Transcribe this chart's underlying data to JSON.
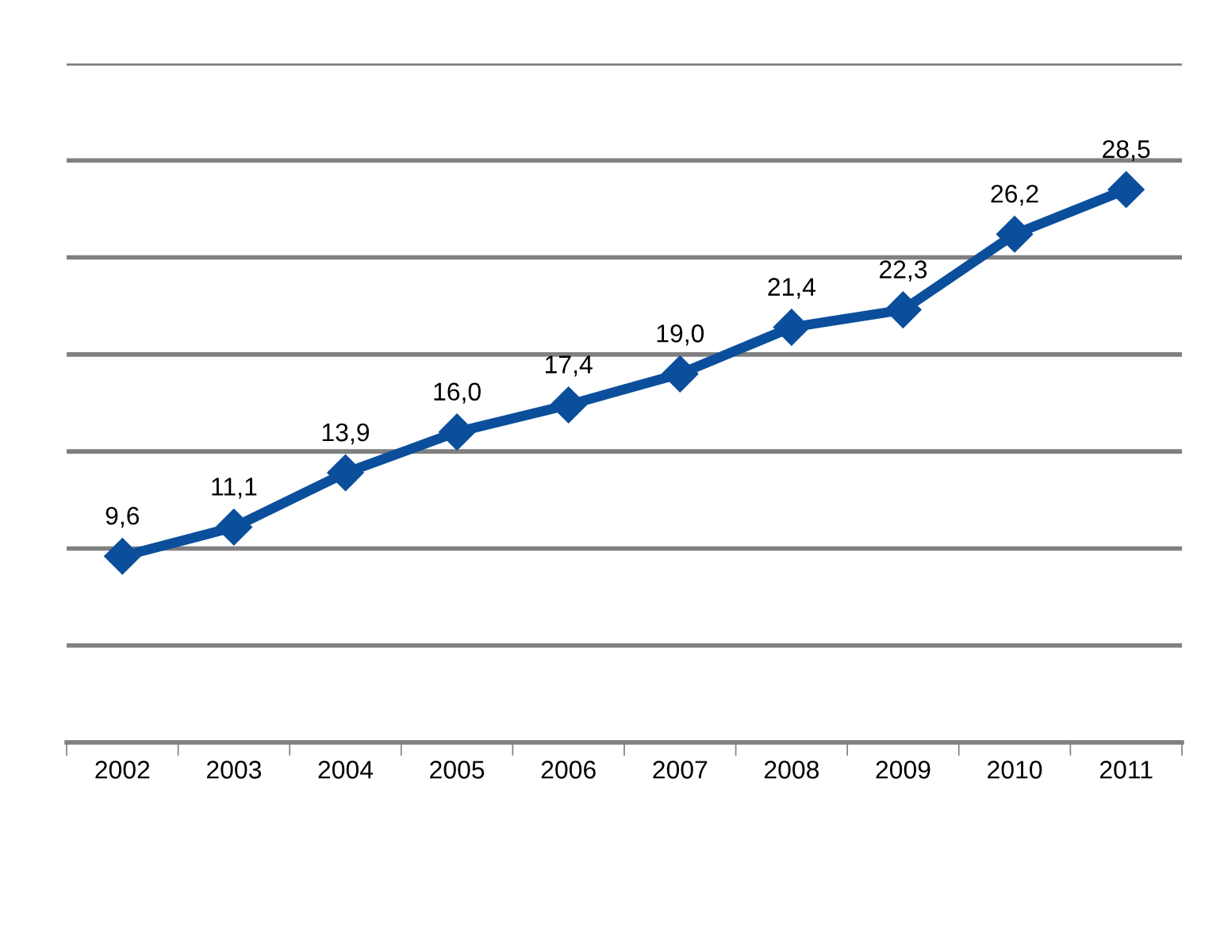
{
  "chart_data": {
    "type": "line",
    "categories": [
      "2002",
      "2003",
      "2004",
      "2005",
      "2006",
      "2007",
      "2008",
      "2009",
      "2010",
      "2011"
    ],
    "values": [
      9.6,
      11.1,
      13.9,
      16.0,
      17.4,
      19.0,
      21.4,
      22.3,
      26.2,
      28.5
    ],
    "value_labels": [
      "9,6",
      "11,1",
      "13,9",
      "16,0",
      "17,4",
      "19,0",
      "21,4",
      "22,3",
      "26,2",
      "28,5"
    ],
    "color": "#0b4f9c",
    "marker": "diamond",
    "line_style": "solid",
    "grid": "y",
    "legend": false,
    "tick_labels": "x",
    "ylim": [
      0,
      35
    ],
    "yticks": [
      {
        "value": 0,
        "label": null
      },
      {
        "value": 5,
        "label": null
      },
      {
        "value": 10,
        "label": null
      },
      {
        "value": 15,
        "label": null
      },
      {
        "value": 20,
        "label": null
      },
      {
        "value": 25,
        "label": null
      },
      {
        "value": 30,
        "label": null
      },
      {
        "value": 35,
        "label": null
      }
    ]
  }
}
